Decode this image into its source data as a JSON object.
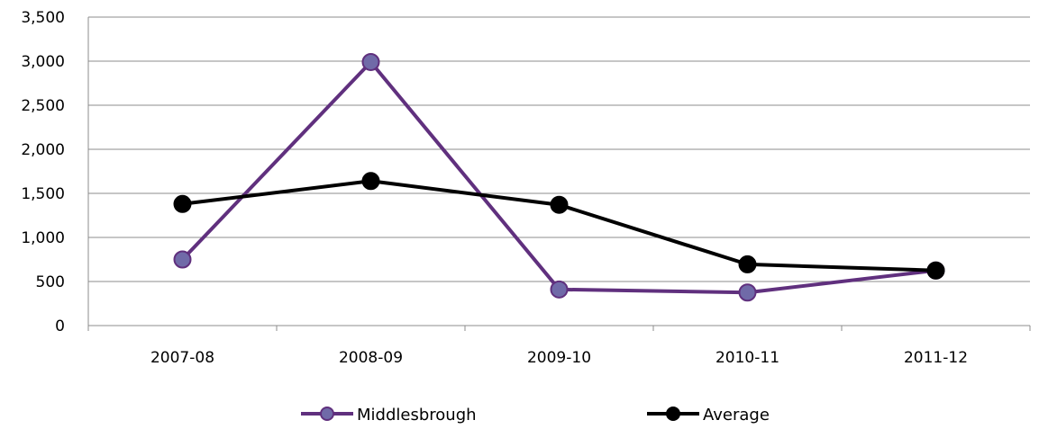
{
  "chart_data": {
    "type": "line",
    "categories": [
      "2007-08",
      "2008-09",
      "2009-10",
      "2010-11",
      "2011-12"
    ],
    "series": [
      {
        "name": "Middlesbrough",
        "values": [
          750,
          2990,
          410,
          375,
          625
        ],
        "color": "#60307E",
        "marker_fill": "#706AA8"
      },
      {
        "name": "Average",
        "values": [
          1380,
          1640,
          1370,
          695,
          625
        ],
        "color": "#000000",
        "marker_fill": "#000000"
      }
    ],
    "ylim": [
      0,
      3500
    ],
    "yticks": [
      0,
      500,
      1000,
      1500,
      2000,
      2500,
      3000,
      3500
    ],
    "ytick_labels": [
      "0",
      "500",
      "1,000",
      "1,500",
      "2,000",
      "2,500",
      "3,000",
      "3,500"
    ],
    "grid": true,
    "legend_position": "bottom",
    "gridline_color": "#8C8C8C"
  }
}
